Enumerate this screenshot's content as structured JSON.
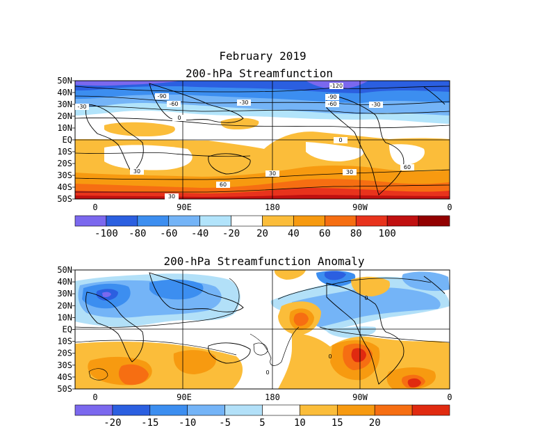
{
  "figure": {
    "title": "February 2019",
    "panel1_title": "200-hPa Streamfunction",
    "panel2_title": "200-hPa Streamfunction Anomaly"
  },
  "axes": {
    "lat_labels": [
      "50N",
      "40N",
      "30N",
      "20N",
      "10N",
      "EQ",
      "10S",
      "20S",
      "30S",
      "40S",
      "50S"
    ],
    "lon_labels": [
      "0",
      "90E",
      "180",
      "90W",
      "0"
    ],
    "lat_range": [
      -50,
      50
    ],
    "lon_range": [
      0,
      360
    ],
    "grid_lines": true
  },
  "colorbar1": {
    "labels": [
      "-100",
      "-80",
      "-60",
      "-40",
      "-20",
      "20",
      "40",
      "60",
      "80",
      "100"
    ],
    "colors": [
      "#7b68ee",
      "#2b5fe0",
      "#3c8ef0",
      "#74b4f7",
      "#b2e4fb",
      "#ffffff",
      "#fbbd3a",
      "#f79a10",
      "#f66e12",
      "#e8331c",
      "#c01010",
      "#920000"
    ]
  },
  "colorbar2": {
    "labels": [
      "-20",
      "-15",
      "-10",
      "-5",
      "5",
      "10",
      "15",
      "20"
    ],
    "colors": [
      "#7b68ee",
      "#2b5fe0",
      "#3c8ef0",
      "#74b4f7",
      "#b2e0f8",
      "#ffffff",
      "#fbbd3a",
      "#f79a10",
      "#f66e12",
      "#e02a10"
    ]
  },
  "contour_labels_panel1": [
    "-120",
    "-90",
    "-90",
    "-60",
    "-60",
    "-30",
    "-30",
    "0",
    "0",
    "30",
    "30",
    "30",
    "60",
    "60",
    "30",
    "-30"
  ],
  "contour_labels_panel2": [
    "0",
    "0",
    "0"
  ]
}
